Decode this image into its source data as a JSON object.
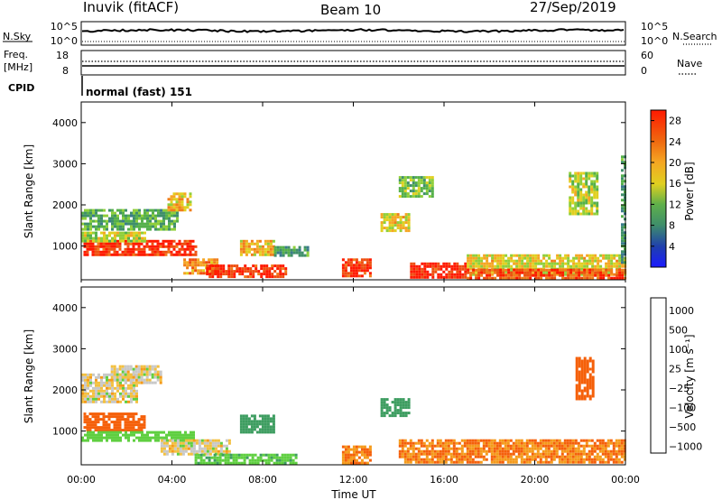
{
  "header": {
    "station": "Inuvik (fitACF)",
    "beam": "Beam 10",
    "date": "27/Sep/2019"
  },
  "noise_panel": {
    "left_label": "N.Sky",
    "right_label": "N.Search",
    "left_ticks": [
      "10^5",
      "10^0"
    ],
    "right_ticks": [
      "10^5",
      "10^0"
    ]
  },
  "freq_panel": {
    "left_label_1": "Freq.",
    "left_label_2": "[MHz]",
    "right_label": "Nave",
    "left_ticks": [
      "18",
      "8"
    ],
    "right_ticks": [
      "60",
      "0"
    ]
  },
  "cpid": {
    "label": "CPID",
    "value": "normal (fast) 151"
  },
  "colors": {
    "power": [
      "#1b1bff",
      "#1f3fae",
      "#3a7a8c",
      "#3f8f6a",
      "#55b04a",
      "#8fcf3a",
      "#e0d020",
      "#f5a623",
      "#f07d1a",
      "#ef4f10",
      "#ff1a00"
    ],
    "velocity": [
      "#e00000",
      "#f5600a",
      "#f59a1a",
      "#f3c040",
      "#c8c8c8",
      "#c0c0c0",
      "#5fcf40",
      "#3d9d60",
      "#2e7f88",
      "#2a4fb0",
      "#2020e0"
    ]
  },
  "chart_data": [
    {
      "type": "heatmap",
      "name": "power",
      "xlabel": "",
      "ylabel": "Slant Range [km]",
      "xlim": [
        0,
        24
      ],
      "ylim": [
        180,
        4500
      ],
      "yticks": [
        "1000",
        "2000",
        "3000",
        "4000"
      ],
      "colorbar": {
        "label": "Power [dB]",
        "ticks": [
          "4",
          "8",
          "12",
          "16",
          "20",
          "24",
          "28"
        ],
        "range": [
          0,
          30
        ]
      },
      "regions": [
        {
          "t": [
            0.1,
            5.0
          ],
          "r": [
            800,
            1150
          ],
          "value": 28
        },
        {
          "t": [
            0.0,
            2.8
          ],
          "r": [
            1150,
            1350
          ],
          "value": 16
        },
        {
          "t": [
            0.0,
            4.2
          ],
          "r": [
            1400,
            1900
          ],
          "value": 12
        },
        {
          "t": [
            3.8,
            4.8
          ],
          "r": [
            1850,
            2300
          ],
          "value": 20
        },
        {
          "t": [
            4.5,
            6.0
          ],
          "r": [
            350,
            700
          ],
          "value": 22
        },
        {
          "t": [
            5.5,
            9.0
          ],
          "r": [
            250,
            550
          ],
          "value": 28
        },
        {
          "t": [
            7.0,
            8.5
          ],
          "r": [
            800,
            1150
          ],
          "value": 20
        },
        {
          "t": [
            8.5,
            10.0
          ],
          "r": [
            800,
            1000
          ],
          "value": 10
        },
        {
          "t": [
            11.5,
            12.8
          ],
          "r": [
            250,
            700
          ],
          "value": 28
        },
        {
          "t": [
            13.2,
            14.5
          ],
          "r": [
            1400,
            1800
          ],
          "value": 18
        },
        {
          "t": [
            14.0,
            15.5
          ],
          "r": [
            2200,
            2700
          ],
          "value": 14
        },
        {
          "t": [
            14.5,
            17.0
          ],
          "r": [
            250,
            600
          ],
          "value": 28
        },
        {
          "t": [
            17.0,
            24.0
          ],
          "r": [
            300,
            800
          ],
          "value": 18
        },
        {
          "t": [
            17.0,
            24.0
          ],
          "r": [
            250,
            450
          ],
          "value": 26
        },
        {
          "t": [
            21.5,
            22.7
          ],
          "r": [
            1800,
            2800
          ],
          "value": 16
        },
        {
          "t": [
            23.8,
            24.0
          ],
          "r": [
            600,
            3200
          ],
          "value": 10
        }
      ]
    },
    {
      "type": "heatmap",
      "name": "velocity",
      "xlabel": "Time UT",
      "ylabel": "Slant Range [km]",
      "xlim": [
        0,
        24
      ],
      "ylim": [
        180,
        4500
      ],
      "xticks": [
        "00:00",
        "04:00",
        "08:00",
        "12:00",
        "16:00",
        "20:00",
        "00:00"
      ],
      "yticks": [
        "1000",
        "2000",
        "3000",
        "4000"
      ],
      "colorbar": {
        "label": "Velocity [m s⁻¹]",
        "ticks": [
          "1000",
          "500",
          "100",
          "25",
          "−25",
          "−100",
          "−500",
          "−1000"
        ]
      },
      "regions": [
        {
          "t": [
            0.0,
            2.5
          ],
          "r": [
            1700,
            2400
          ],
          "value": 0
        },
        {
          "t": [
            1.3,
            3.5
          ],
          "r": [
            2200,
            2600
          ],
          "value": 0
        },
        {
          "t": [
            0.1,
            2.8
          ],
          "r": [
            1000,
            1450
          ],
          "value": -150
        },
        {
          "t": [
            0.0,
            5.0
          ],
          "r": [
            800,
            1000
          ],
          "value": 60
        },
        {
          "t": [
            3.5,
            6.5
          ],
          "r": [
            450,
            800
          ],
          "value": 0
        },
        {
          "t": [
            5.0,
            9.5
          ],
          "r": [
            200,
            450
          ],
          "value": 80
        },
        {
          "t": [
            7.0,
            8.5
          ],
          "r": [
            1000,
            1400
          ],
          "value": 300
        },
        {
          "t": [
            11.5,
            12.8
          ],
          "r": [
            200,
            650
          ],
          "value": -100
        },
        {
          "t": [
            13.2,
            14.5
          ],
          "r": [
            1400,
            1800
          ],
          "value": 300
        },
        {
          "t": [
            14.0,
            24.0
          ],
          "r": [
            250,
            800
          ],
          "value": -100
        },
        {
          "t": [
            21.8,
            22.6
          ],
          "r": [
            1800,
            2800
          ],
          "value": -400
        }
      ]
    }
  ]
}
